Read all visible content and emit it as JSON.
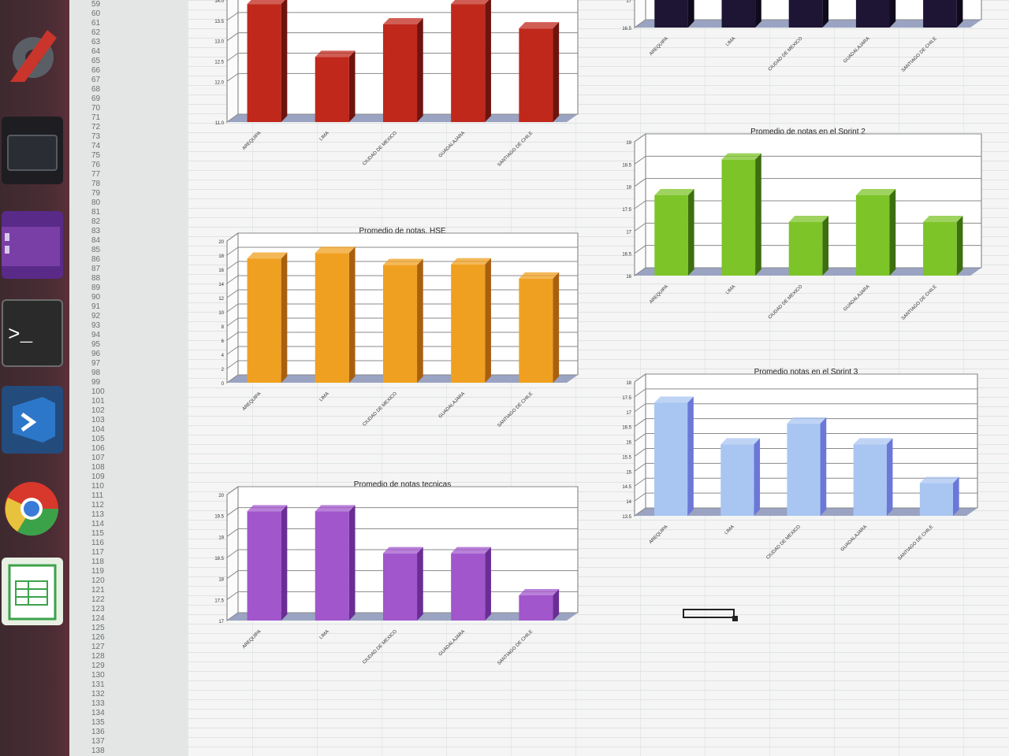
{
  "dock": {
    "items": [
      {
        "name": "settings-tool-icon",
        "color": "#c94a3a"
      },
      {
        "name": "window-app-icon",
        "color": "#555a60"
      },
      {
        "name": "purple-app-icon",
        "color": "#7a3fa6"
      },
      {
        "name": "terminal-icon",
        "color": "#2b2b2b"
      },
      {
        "name": "vscode-icon",
        "color": "#2c77c9"
      },
      {
        "name": "chrome-icon",
        "color": "#e8c23c"
      },
      {
        "name": "spreadsheet-icon",
        "color": "#3ca24a"
      }
    ]
  },
  "sheet": {
    "row_numbers": [
      "59",
      "60",
      "61",
      "62",
      "63",
      "64",
      "65",
      "66",
      "67",
      "68",
      "69",
      "70",
      "71",
      "72",
      "73",
      "74",
      "75",
      "76",
      "77",
      "78",
      "79",
      "80",
      "81",
      "82",
      "83",
      "84",
      "85",
      "86",
      "87",
      "88",
      "89",
      "90",
      "91",
      "92",
      "93",
      "94",
      "95",
      "96",
      "97",
      "98",
      "99",
      "100",
      "101",
      "102",
      "103",
      "104",
      "105",
      "106",
      "107",
      "108",
      "109",
      "110",
      "111",
      "112",
      "113",
      "114",
      "115",
      "116",
      "117",
      "118",
      "119",
      "120",
      "121",
      "122",
      "123",
      "124",
      "125",
      "126",
      "127",
      "128",
      "129",
      "130",
      "131",
      "132",
      "133",
      "134",
      "135",
      "136",
      "137",
      "138"
    ]
  },
  "chart_data": [
    {
      "id": "chart-red",
      "type": "bar",
      "title": "",
      "categories": [
        "AREQUIPA",
        "LIMA",
        "CIUDAD DE MEXICO",
        "GUADALAJARA",
        "SANTIAGO DE CHILE"
      ],
      "values": [
        13.9,
        12.6,
        13.4,
        13.9,
        13.3
      ],
      "yticks": [
        "11.0",
        "12.0",
        "12.5",
        "13.0",
        "13.5",
        "14.0"
      ],
      "ylim": [
        11.0,
        14.0
      ],
      "color": "#c0281c",
      "side": "#6e140e"
    },
    {
      "id": "chart-dark",
      "type": "bar",
      "title": "",
      "categories": [
        "AREQUIPA",
        "LIMA",
        "CIUDAD DE MEXICO",
        "GUADALAJARA",
        "SANTIAGO DE CHILE"
      ],
      "values": [
        17,
        17,
        17,
        17,
        17
      ],
      "yticks": [
        "16.5",
        "17"
      ],
      "ylim": [
        16.5,
        17
      ],
      "color": "#1e1535",
      "side": "#0f0a1c"
    },
    {
      "id": "chart-green",
      "type": "bar",
      "title": "Promedio de notas en el Sprint 2",
      "categories": [
        "AREQUIPA",
        "LIMA",
        "CIUDAD DE MEXICO",
        "GUADALAJARA",
        "SANTIAGO DE CHILE"
      ],
      "values": [
        17.8,
        18.6,
        17.2,
        17.8,
        17.2
      ],
      "yticks": [
        "16",
        "16.5",
        "17",
        "17.5",
        "18",
        "18.5",
        "19"
      ],
      "ylim": [
        16,
        19
      ],
      "color": "#7cc428",
      "side": "#3d6e10"
    },
    {
      "id": "chart-orange",
      "type": "bar",
      "title": "Promedio de notas, HSE",
      "categories": [
        "AREQUIPA",
        "LIMA",
        "CIUDAD DE MEXICO",
        "GUADALAJARA",
        "SANTIAGO DE CHILE"
      ],
      "values": [
        17.5,
        18.3,
        16.6,
        16.7,
        14.7
      ],
      "yticks": [
        "0",
        "2",
        "4",
        "6",
        "8",
        "10",
        "12",
        "14",
        "16",
        "18",
        "20"
      ],
      "ylim": [
        0,
        20
      ],
      "color": "#f0a020",
      "side": "#a86010"
    },
    {
      "id": "chart-blue",
      "type": "bar",
      "title": "Promedio notas en el Sprint 3",
      "categories": [
        "AREQUIPA",
        "LIMA",
        "CIUDAD DE MEXICO",
        "GUADALAJARA",
        "SANTIAGO DE CHILE"
      ],
      "values": [
        17.3,
        15.9,
        16.6,
        15.9,
        14.6
      ],
      "yticks": [
        "13.5",
        "14",
        "14.5",
        "15",
        "15.5",
        "16",
        "16.5",
        "17",
        "17.5",
        "18"
      ],
      "ylim": [
        13.5,
        18
      ],
      "color": "#a9c6f2",
      "side": "#6b78d8"
    },
    {
      "id": "chart-purple",
      "type": "bar",
      "title": "Promedio de notas tecnicas",
      "categories": [
        "AREQUIPA",
        "LIMA",
        "CIUDAD DE MEXICO",
        "GUADALAJARA",
        "SANTIAGO DE CHILE"
      ],
      "values": [
        19.6,
        19.6,
        18.6,
        18.6,
        17.6
      ],
      "yticks": [
        "17",
        "17.5",
        "18",
        "18.5",
        "19",
        "19.5",
        "20"
      ],
      "ylim": [
        17,
        20
      ],
      "color": "#a156cc",
      "side": "#6a2d94"
    }
  ]
}
